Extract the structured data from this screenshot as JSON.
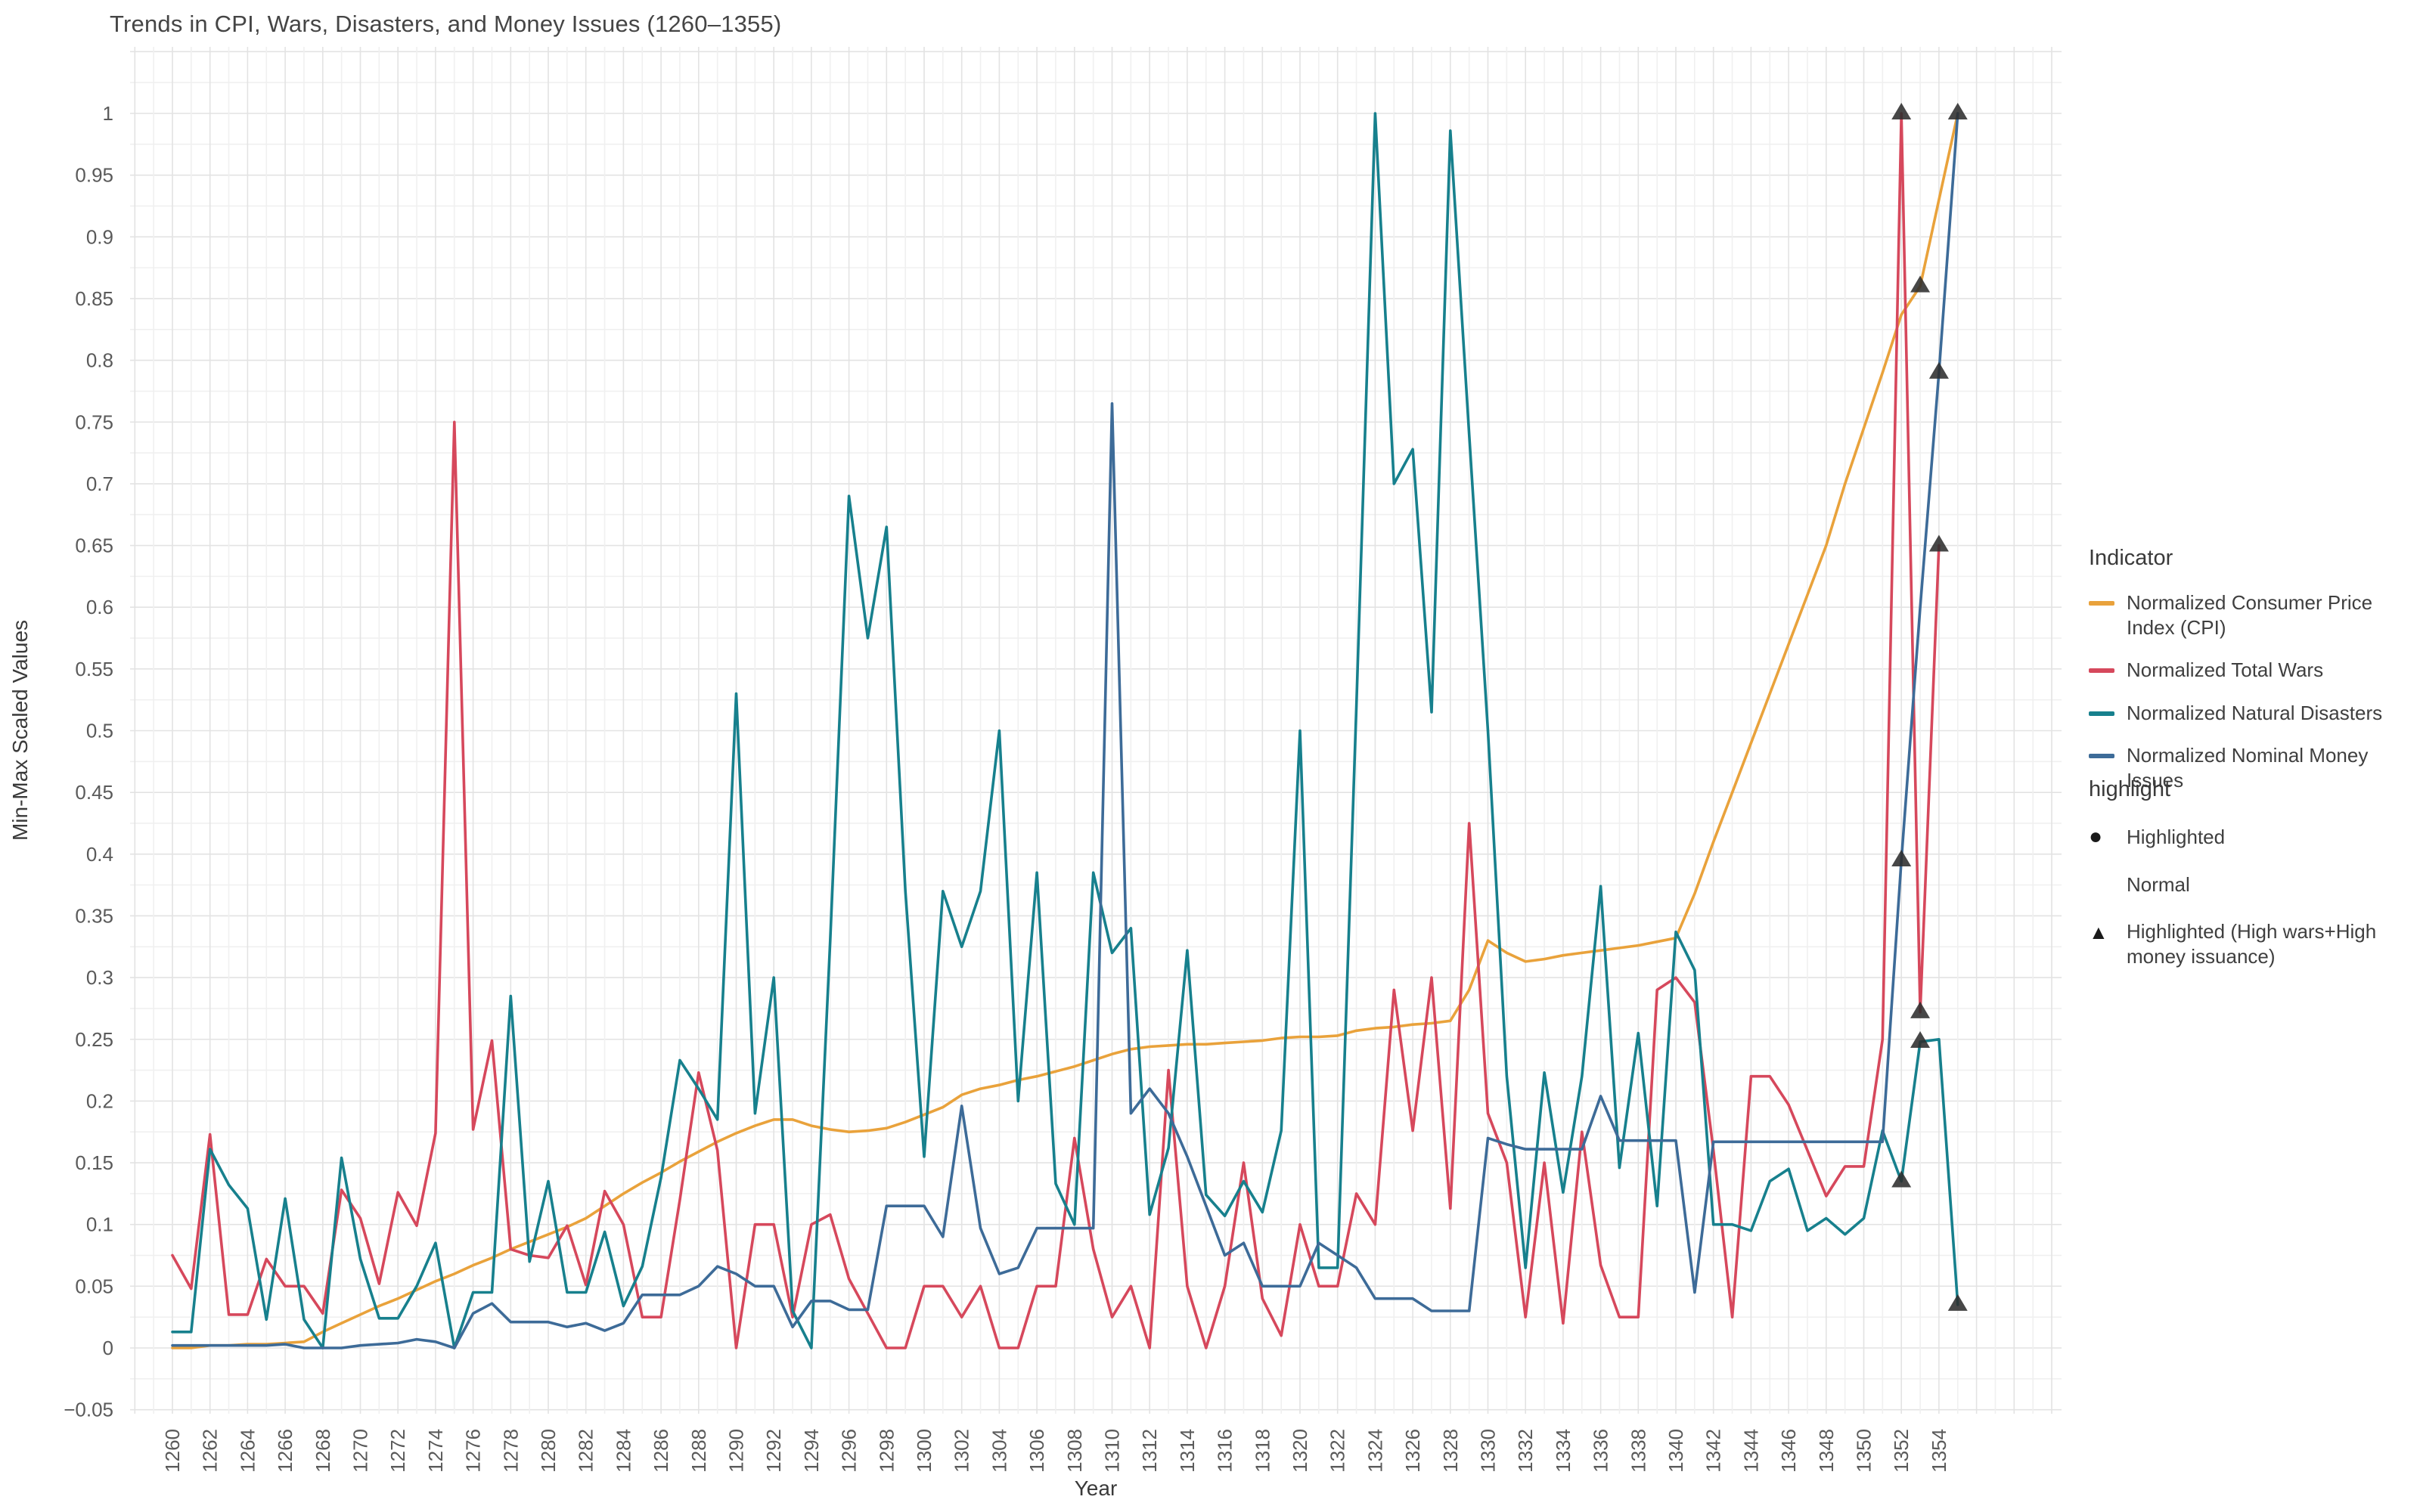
{
  "title": "Trends in CPI, Wars, Disasters, and Money Issues (1260–1355)",
  "x_axis": {
    "label": "Year",
    "tick_start": 1260,
    "tick_end": 1354,
    "tick_step": 2
  },
  "y_axis": {
    "label": "Min-Max Scaled Values",
    "ticks": [
      1,
      0.95,
      0.9,
      0.85,
      0.8,
      0.75,
      0.7,
      0.65,
      0.6,
      0.55,
      0.5,
      0.45,
      0.4,
      0.35,
      0.3,
      0.25,
      0.2,
      0.15,
      0.1,
      0.05,
      0,
      -0.05
    ]
  },
  "legend": {
    "indicator_title": "Indicator",
    "highlight_title": "highlight",
    "items": [
      {
        "key": "cpi",
        "label": "Normalized Consumer Price Index (CPI)",
        "color": "#E9A23B"
      },
      {
        "key": "wars",
        "label": "Normalized Total Wars",
        "color": "#D6485C"
      },
      {
        "key": "disasters",
        "label": "Normalized Natural Disasters",
        "color": "#17808D"
      },
      {
        "key": "money",
        "label": "Normalized Nominal Money Issues",
        "color": "#3D6B98"
      }
    ],
    "highlight_items": [
      {
        "symbol": "circle",
        "label": "Highlighted"
      },
      {
        "symbol": "none",
        "label": "Normal"
      },
      {
        "symbol": "triangle",
        "label": "Highlighted (High wars+High money issuance)"
      }
    ]
  },
  "chart_data": {
    "type": "line",
    "title": "Trends in CPI, Wars, Disasters, and Money Issues (1260–1355)",
    "xlabel": "Year",
    "ylabel": "Min-Max Scaled Values",
    "xlim": [
      1257.9,
      1360.5
    ],
    "ylim": [
      -0.053,
      1.053
    ],
    "grid": true,
    "legend_position": "right",
    "x_start_year": 1260,
    "series": [
      {
        "name": "Normalized Consumer Price Index (CPI)",
        "key": "cpi",
        "color": "#E9A23B",
        "values": [
          0,
          0,
          0.002,
          0.002,
          0.003,
          0.003,
          0.004,
          0.005,
          0.013,
          0.02,
          0.027,
          0.034,
          0.04,
          0.047,
          0.054,
          0.06,
          0.067,
          0.073,
          0.08,
          0.086,
          0.092,
          0.098,
          0.105,
          0.115,
          0.125,
          0.134,
          0.142,
          0.151,
          0.159,
          0.167,
          0.174,
          0.18,
          0.185,
          0.185,
          0.18,
          0.177,
          0.175,
          0.176,
          0.178,
          0.183,
          0.189,
          0.195,
          0.205,
          0.21,
          0.213,
          0.217,
          0.22,
          0.224,
          0.228,
          0.233,
          0.238,
          0.242,
          0.244,
          0.245,
          0.246,
          0.246,
          0.247,
          0.248,
          0.249,
          0.251,
          0.252,
          0.252,
          0.253,
          0.257,
          0.259,
          0.26,
          0.262,
          0.263,
          0.265,
          0.29,
          0.33,
          0.32,
          0.313,
          0.315,
          0.318,
          0.32,
          0.322,
          0.324,
          0.326,
          0.329,
          0.332,
          0.368,
          0.41,
          0.45,
          0.49,
          0.53,
          0.57,
          0.61,
          0.65,
          0.7,
          0.745,
          0.79,
          0.837,
          0.86,
          0.93,
          1.0
        ]
      },
      {
        "name": "Normalized Total Wars",
        "key": "wars",
        "color": "#D6485C",
        "values": [
          0.075,
          0.048,
          0.173,
          0.027,
          0.027,
          0.072,
          0.05,
          0.05,
          0.028,
          0.128,
          0.105,
          0.052,
          0.126,
          0.099,
          0.174,
          0.75,
          0.177,
          0.249,
          0.08,
          0.075,
          0.073,
          0.099,
          0.051,
          0.127,
          0.1,
          0.025,
          0.025,
          0.12,
          0.223,
          0.16,
          0.0,
          0.1,
          0.1,
          0.025,
          0.1,
          0.108,
          0.056,
          0.028,
          0.0,
          0.0,
          0.05,
          0.05,
          0.025,
          0.05,
          0.0,
          0.0,
          0.05,
          0.05,
          0.17,
          0.08,
          0.025,
          0.05,
          0.0,
          0.225,
          0.05,
          0.0,
          0.05,
          0.15,
          0.04,
          0.01,
          0.1,
          0.05,
          0.05,
          0.125,
          0.1,
          0.29,
          0.176,
          0.3,
          0.113,
          0.425,
          0.19,
          0.15,
          0.025,
          0.15,
          0.02,
          0.175,
          0.067,
          0.025,
          0.025,
          0.29,
          0.3,
          0.28,
          0.16,
          0.025,
          0.22,
          0.22,
          0.197,
          0.16,
          0.123,
          0.147,
          0.147,
          0.25,
          1.0,
          0.272,
          0.65
        ]
      },
      {
        "name": "Normalized Natural Disasters",
        "key": "disasters",
        "color": "#17808D",
        "values": [
          0.013,
          0.013,
          0.161,
          0.132,
          0.113,
          0.023,
          0.121,
          0.023,
          0.0,
          0.154,
          0.072,
          0.024,
          0.024,
          0.05,
          0.085,
          0.0,
          0.045,
          0.045,
          0.285,
          0.07,
          0.135,
          0.045,
          0.045,
          0.094,
          0.034,
          0.066,
          0.138,
          0.233,
          0.21,
          0.185,
          0.53,
          0.19,
          0.3,
          0.03,
          0.0,
          0.33,
          0.69,
          0.575,
          0.665,
          0.37,
          0.155,
          0.37,
          0.325,
          0.37,
          0.5,
          0.2,
          0.385,
          0.133,
          0.1,
          0.385,
          0.32,
          0.34,
          0.108,
          0.162,
          0.322,
          0.124,
          0.107,
          0.135,
          0.11,
          0.176,
          0.5,
          0.065,
          0.065,
          0.52,
          1.0,
          0.7,
          0.728,
          0.515,
          0.986,
          0.74,
          0.5,
          0.22,
          0.065,
          0.223,
          0.126,
          0.22,
          0.374,
          0.146,
          0.255,
          0.115,
          0.337,
          0.306,
          0.1,
          0.1,
          0.095,
          0.135,
          0.145,
          0.095,
          0.105,
          0.092,
          0.105,
          0.176,
          0.135,
          0.248,
          0.25,
          0.035
        ]
      },
      {
        "name": "Normalized Nominal Money Issues",
        "key": "money",
        "color": "#3D6B98",
        "values": [
          0.002,
          0.002,
          0.002,
          0.002,
          0.002,
          0.002,
          0.003,
          0.0,
          0.0,
          0.0,
          0.002,
          0.003,
          0.004,
          0.007,
          0.005,
          0.0,
          0.028,
          0.036,
          0.021,
          0.021,
          0.021,
          0.017,
          0.02,
          0.014,
          0.02,
          0.043,
          0.043,
          0.043,
          0.05,
          0.066,
          0.06,
          0.05,
          0.05,
          0.017,
          0.038,
          0.038,
          0.031,
          0.031,
          0.115,
          0.115,
          0.115,
          0.09,
          0.196,
          0.097,
          0.06,
          0.065,
          0.097,
          0.097,
          0.097,
          0.097,
          0.765,
          0.19,
          0.21,
          0.19,
          0.155,
          0.115,
          0.075,
          0.085,
          0.05,
          0.05,
          0.05,
          0.085,
          0.075,
          0.065,
          0.04,
          0.04,
          0.04,
          0.03,
          0.03,
          0.03,
          0.17,
          0.165,
          0.161,
          0.161,
          0.161,
          0.161,
          0.204,
          0.168,
          0.168,
          0.168,
          0.168,
          0.045,
          0.167,
          0.167,
          0.167,
          0.167,
          0.167,
          0.167,
          0.167,
          0.167,
          0.167,
          0.167,
          0.395,
          0.6,
          0.79,
          1.0
        ]
      }
    ],
    "highlight_markers": [
      {
        "series": "wars",
        "year": 1352,
        "value": 1.0
      },
      {
        "series": "wars",
        "year": 1353,
        "value": 0.272
      },
      {
        "series": "wars",
        "year": 1354,
        "value": 0.65
      },
      {
        "series": "cpi",
        "year": 1353,
        "value": 0.86
      },
      {
        "series": "money",
        "year": 1352,
        "value": 0.395
      },
      {
        "series": "money",
        "year": 1354,
        "value": 0.79
      },
      {
        "series": "money",
        "year": 1355,
        "value": 1.0
      },
      {
        "series": "disasters",
        "year": 1352,
        "value": 0.135
      },
      {
        "series": "disasters",
        "year": 1353,
        "value": 0.248
      },
      {
        "series": "disasters",
        "year": 1355,
        "value": 0.035
      }
    ]
  },
  "colors": {
    "grid_major": "#e3e3e3",
    "grid_minor": "#f0f0f0",
    "tick_text": "#5a5a5a",
    "axis_title": "#3a3a3a",
    "marker": "#2e2e2e"
  }
}
